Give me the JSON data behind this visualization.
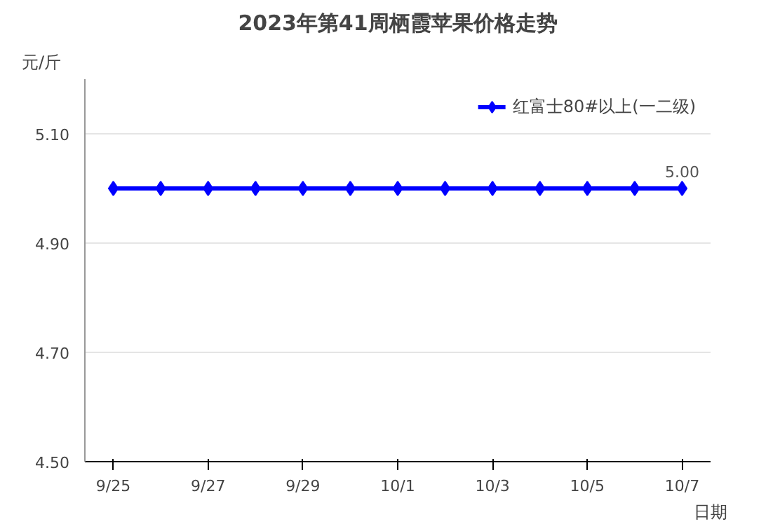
{
  "chart_data": {
    "type": "line",
    "title": "2023年第41周栖霞苹果价格走势",
    "ylabel": "元/斤",
    "xlabel": "日期",
    "categories": [
      "9/25",
      null,
      "9/27",
      null,
      "9/29",
      null,
      "10/1",
      null,
      "10/3",
      null,
      "10/5",
      null,
      "10/7"
    ],
    "series": [
      {
        "name": "红富士80#以上(一二级)",
        "color": "#0000ff",
        "values": [
          5.0,
          5.0,
          5.0,
          5.0,
          5.0,
          5.0,
          5.0,
          5.0,
          5.0,
          5.0,
          5.0,
          5.0,
          5.0
        ],
        "value_labels": [
          null,
          null,
          null,
          null,
          null,
          null,
          null,
          null,
          null,
          null,
          null,
          null,
          "5.00"
        ]
      }
    ],
    "ylim": [
      4.5,
      5.2
    ],
    "yticks": [
      {
        "value": 4.5,
        "label": "4.50"
      },
      {
        "value": 4.7,
        "label": "4.70"
      },
      {
        "value": 4.9,
        "label": "4.90"
      },
      {
        "value": 5.1,
        "label": "5.10"
      }
    ],
    "grid": "y",
    "legend": "top right",
    "marker": "diamond",
    "line_style": "solid"
  }
}
